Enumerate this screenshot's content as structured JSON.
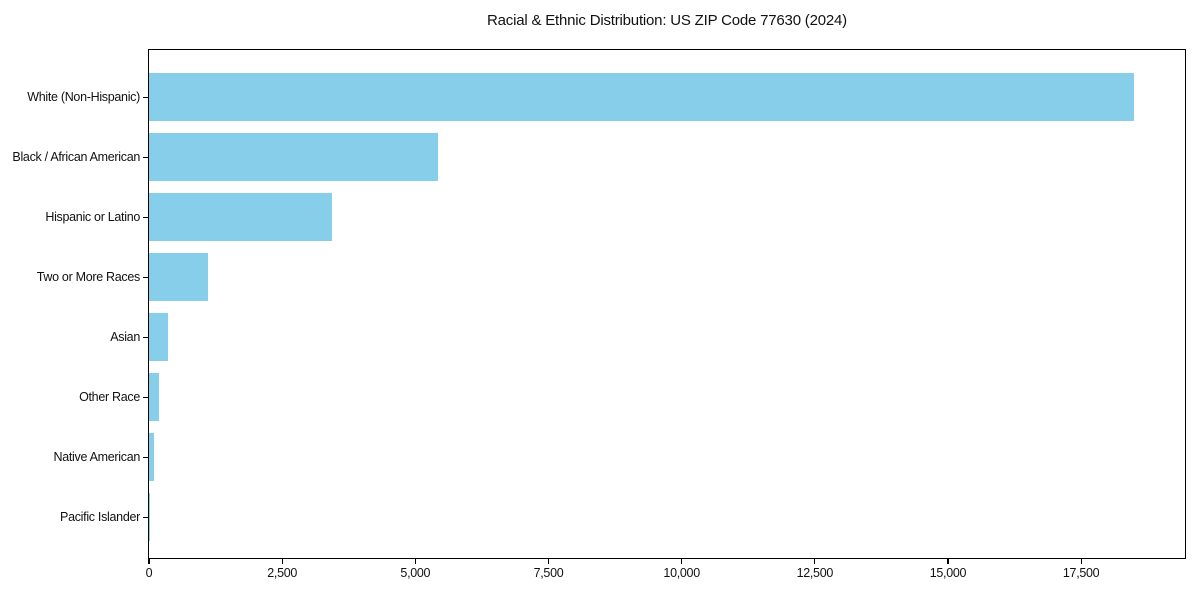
{
  "chart_data": {
    "type": "bar",
    "orientation": "horizontal",
    "title": "Racial & Ethnic Distribution: US ZIP Code 77630 (2024)",
    "categories": [
      "White (Non-Hispanic)",
      "Black / African American",
      "Hispanic or Latino",
      "Two or More Races",
      "Asian",
      "Other Race",
      "Native American",
      "Pacific Islander"
    ],
    "values": [
      18500,
      5430,
      3430,
      1110,
      360,
      190,
      90,
      20
    ],
    "xlabel": "",
    "ylabel": "",
    "xlim": [
      0,
      19450
    ],
    "x_ticks": [
      0,
      2500,
      5000,
      7500,
      10000,
      12500,
      15000,
      17500
    ],
    "x_tick_labels": [
      "0",
      "2,500",
      "5,000",
      "7,500",
      "10,000",
      "12,500",
      "15,000",
      "17,500"
    ],
    "bar_color": "#87CEEB",
    "grid": false,
    "legend": null,
    "background_color": "#ffffff"
  }
}
